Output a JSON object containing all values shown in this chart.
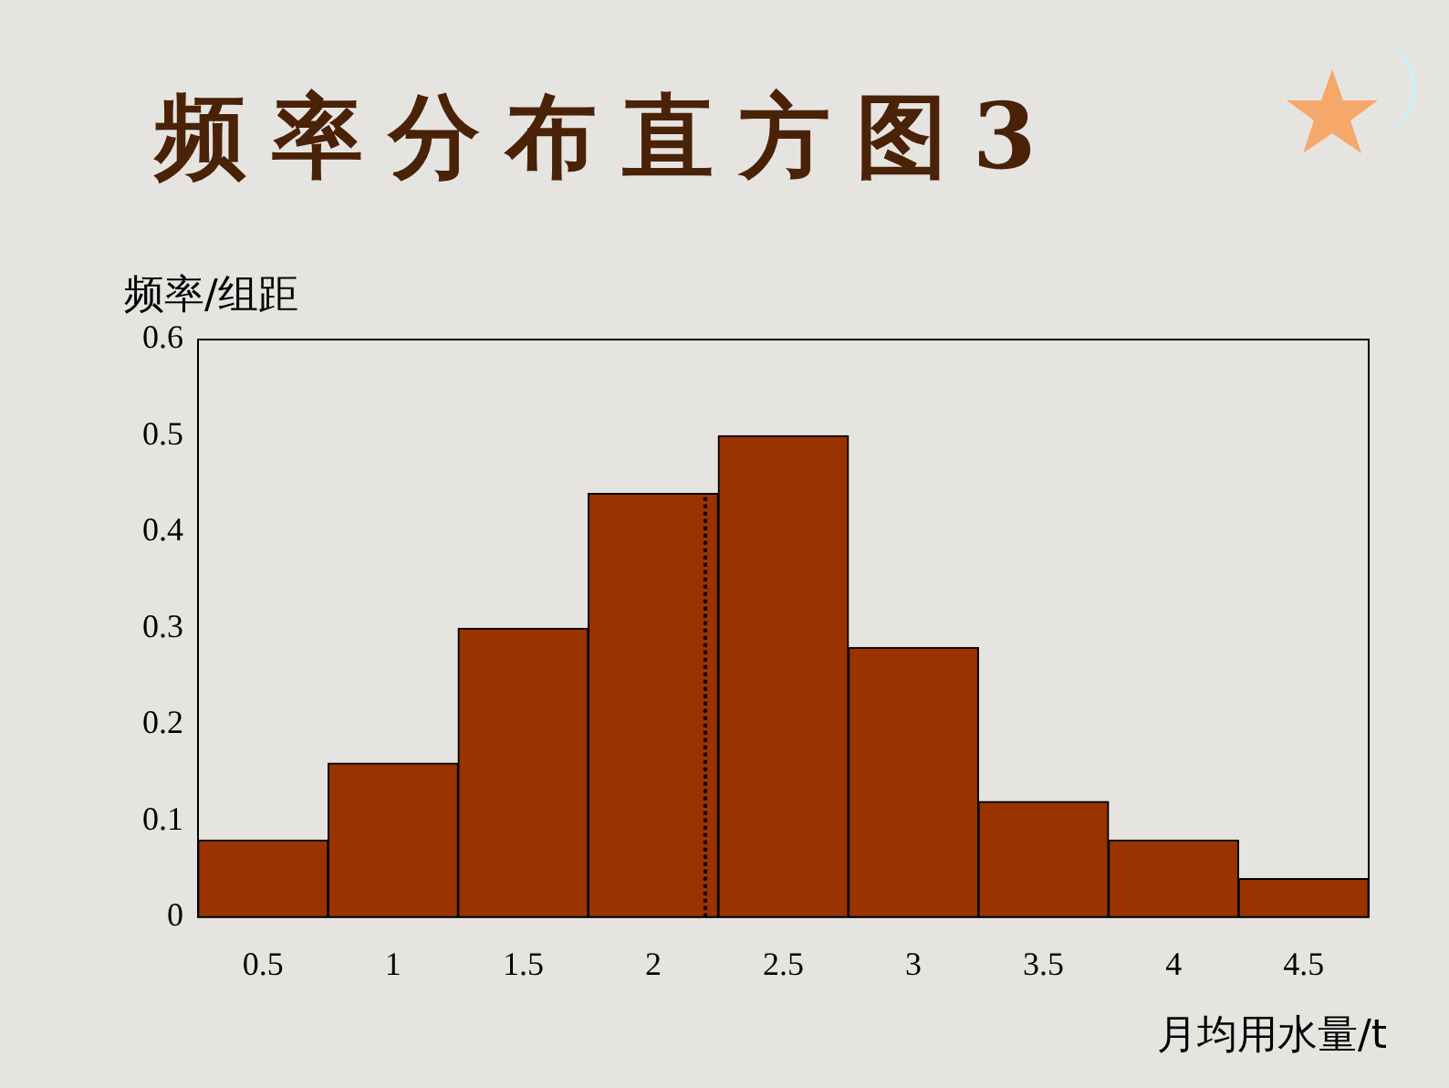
{
  "chart_data": {
    "type": "histogram",
    "title": "频率分布直方图3",
    "xlabel": "月均用水量/t",
    "ylabel": "频率/组距",
    "bins": [
      0.25,
      0.75,
      1.25,
      1.75,
      2.25,
      2.75,
      3.25,
      3.75,
      4.25,
      4.75
    ],
    "values": [
      0.08,
      0.16,
      0.3,
      0.44,
      0.5,
      0.28,
      0.12,
      0.08,
      0.04
    ],
    "color": "#993300",
    "xlim": [
      0.25,
      4.75
    ],
    "xticks": [
      0.5,
      1,
      1.5,
      2,
      2.5,
      3,
      3.5,
      4,
      4.5
    ],
    "ylim": [
      0,
      0.6
    ],
    "yticks": [
      0,
      0.1,
      0.2,
      0.3,
      0.4,
      0.5,
      0.6
    ],
    "ref_lines": [
      {
        "axis": "x",
        "value": 2.2,
        "line_style": "dotted",
        "color": "#000000"
      }
    ],
    "grid": false,
    "legend": false
  }
}
